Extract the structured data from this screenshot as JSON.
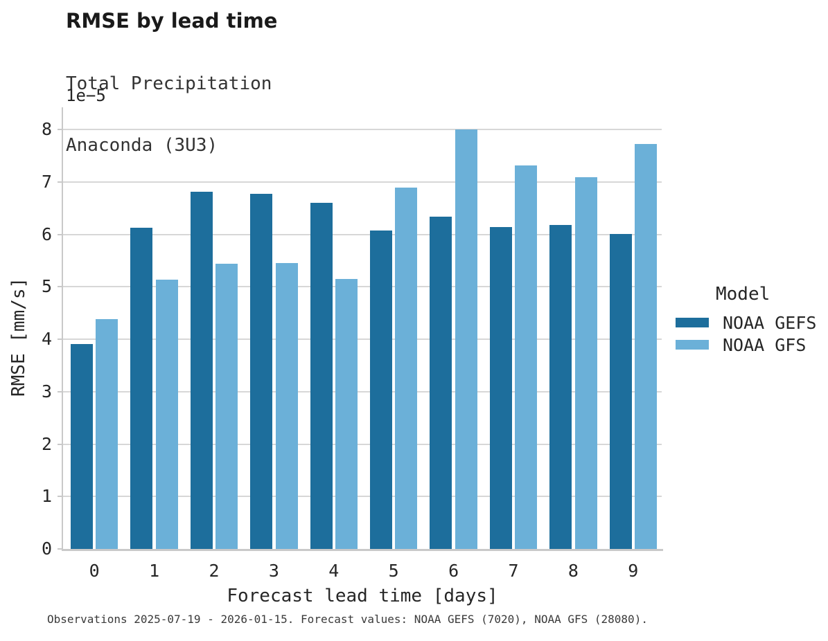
{
  "header": {
    "title": "RMSE by lead time",
    "subtitle_lines": [
      "Total Precipitation",
      "Anaconda (3U3)"
    ]
  },
  "axes": {
    "offset_label": "1e−5"
  },
  "legend": {
    "title": "Model",
    "items": [
      {
        "label": "NOAA GEFS",
        "color": "#1d6e9c"
      },
      {
        "label": "NOAA GFS",
        "color": "#6bb0d8"
      }
    ]
  },
  "footer": {
    "text": "Observations 2025-07-19 - 2026-01-15. Forecast values: NOAA GEFS (7020), NOAA GFS (28080)."
  },
  "colors": {
    "gefs_bar": "#1d6e9c",
    "gfs_bar": "#6bb0d8",
    "gridline": "#d7d7d7",
    "spine": "#c9c9c9",
    "text": "#262626",
    "subtext": "#3a3a3a",
    "background": "#ffffff"
  },
  "chart_data": {
    "type": "bar",
    "title": "RMSE by lead time",
    "subtitle": "Total Precipitation — Anaconda (3U3)",
    "categories": [
      "0",
      "1",
      "2",
      "3",
      "4",
      "5",
      "6",
      "7",
      "8",
      "9"
    ],
    "series": [
      {
        "name": "NOAA GEFS",
        "color": "#1d6e9c",
        "values": [
          3.91,
          6.13,
          6.82,
          6.77,
          6.61,
          6.08,
          6.34,
          6.14,
          6.18,
          6.01
        ]
      },
      {
        "name": "NOAA GFS",
        "color": "#6bb0d8",
        "values": [
          4.39,
          5.14,
          5.44,
          5.45,
          5.15,
          6.9,
          8.0,
          7.32,
          7.09,
          7.73
        ]
      }
    ],
    "value_units": "×1e-5 mm/s",
    "xlabel": "Forecast lead time [days]",
    "ylabel": "RMSE [mm/s]",
    "ylim": [
      0,
      8.4
    ],
    "yticks": [
      0,
      1,
      2,
      3,
      4,
      5,
      6,
      7,
      8
    ],
    "grid": true,
    "legend_title": "Model",
    "legend_position": "right-outside"
  }
}
